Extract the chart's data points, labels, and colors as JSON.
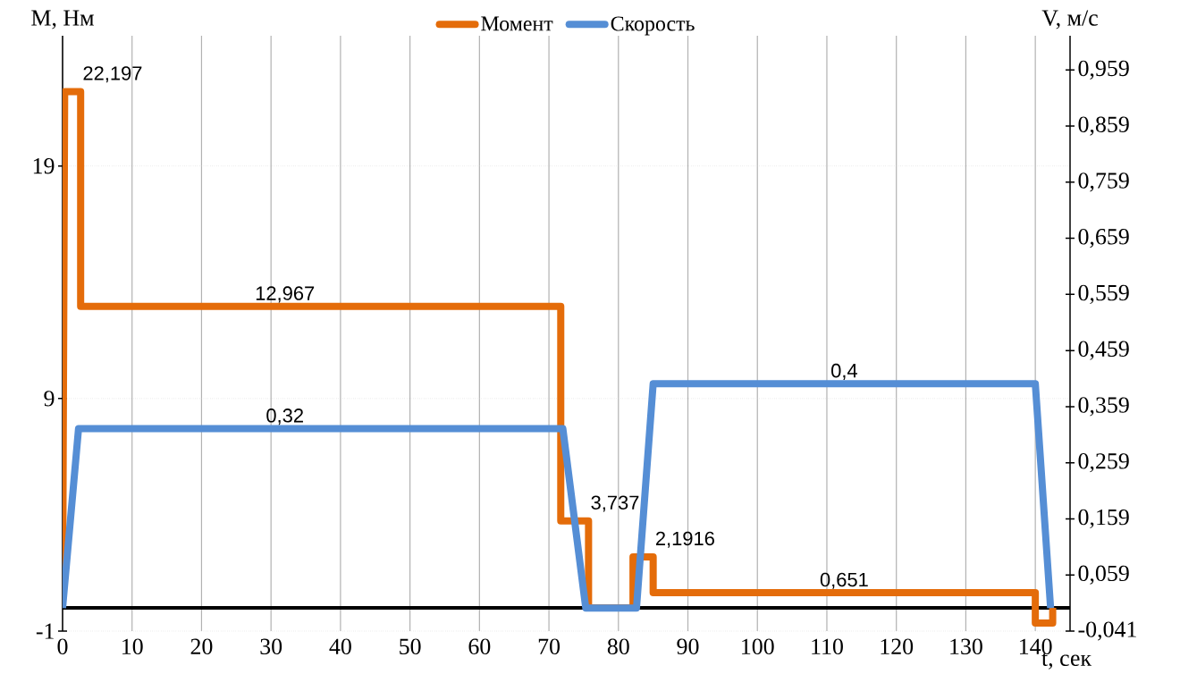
{
  "chart_data": {
    "type": "line",
    "xlabel": "t, сек",
    "ylabel": "M, Нм",
    "y2label": "V, м/с",
    "xlim": [
      0,
      145
    ],
    "xticks": [
      0,
      10,
      20,
      30,
      40,
      50,
      60,
      70,
      80,
      90,
      100,
      110,
      120,
      130,
      140
    ],
    "ylim": [
      -1,
      24.6
    ],
    "yticks": [
      -1,
      9,
      19
    ],
    "y2lim": [
      -0.041,
      1.02
    ],
    "y2ticks": [
      {
        "value": -0.041,
        "label": "-0,041"
      },
      {
        "value": 0.059,
        "label": "0,059"
      },
      {
        "value": 0.159,
        "label": "0,159"
      },
      {
        "value": 0.259,
        "label": "0,259"
      },
      {
        "value": 0.359,
        "label": "0,359"
      },
      {
        "value": 0.459,
        "label": "0,459"
      },
      {
        "value": 0.559,
        "label": "0,559"
      },
      {
        "value": 0.659,
        "label": "0,659"
      },
      {
        "value": 0.759,
        "label": "0,759"
      },
      {
        "value": 0.859,
        "label": "0,859"
      },
      {
        "value": 0.959,
        "label": "0,959"
      }
    ],
    "grid": true,
    "legend": "top",
    "marker": "none",
    "line_style": "solid",
    "ref_lines": [
      {
        "axis": "y",
        "value": 0,
        "color": "#000000"
      }
    ],
    "series": [
      {
        "name": "Момент",
        "color": "#e46c0a",
        "x": [
          0,
          0.3,
          2.6,
          2.6,
          32,
          71.7,
          71.7,
          75.7,
          75.7,
          82.1,
          82.1,
          85,
          85,
          112.5,
          140,
          140,
          142.5,
          142.5
        ],
        "values": [
          0,
          22.197,
          22.197,
          12.967,
          12.967,
          12.967,
          3.737,
          3.737,
          0,
          0,
          2.1916,
          2.1916,
          0.651,
          0.651,
          0.651,
          -0.651,
          -0.651,
          0
        ],
        "value_labels": [
          null,
          null,
          "22,197",
          null,
          "12,967",
          null,
          null,
          "3,737",
          null,
          null,
          null,
          "2,1916",
          null,
          "0,651",
          null,
          null,
          null,
          null
        ]
      },
      {
        "name": "Скорость",
        "color": "#558ed5",
        "axis": "y2",
        "x": [
          0,
          2.3,
          32,
          72,
          75.3,
          82.6,
          85,
          112.5,
          140,
          142.2
        ],
        "values": [
          0,
          0.32,
          0.32,
          0.32,
          0,
          0,
          0.4,
          0.4,
          0.4,
          0
        ],
        "value_labels": [
          null,
          null,
          "0,32",
          null,
          null,
          null,
          null,
          "0,4",
          null,
          null
        ]
      }
    ]
  }
}
